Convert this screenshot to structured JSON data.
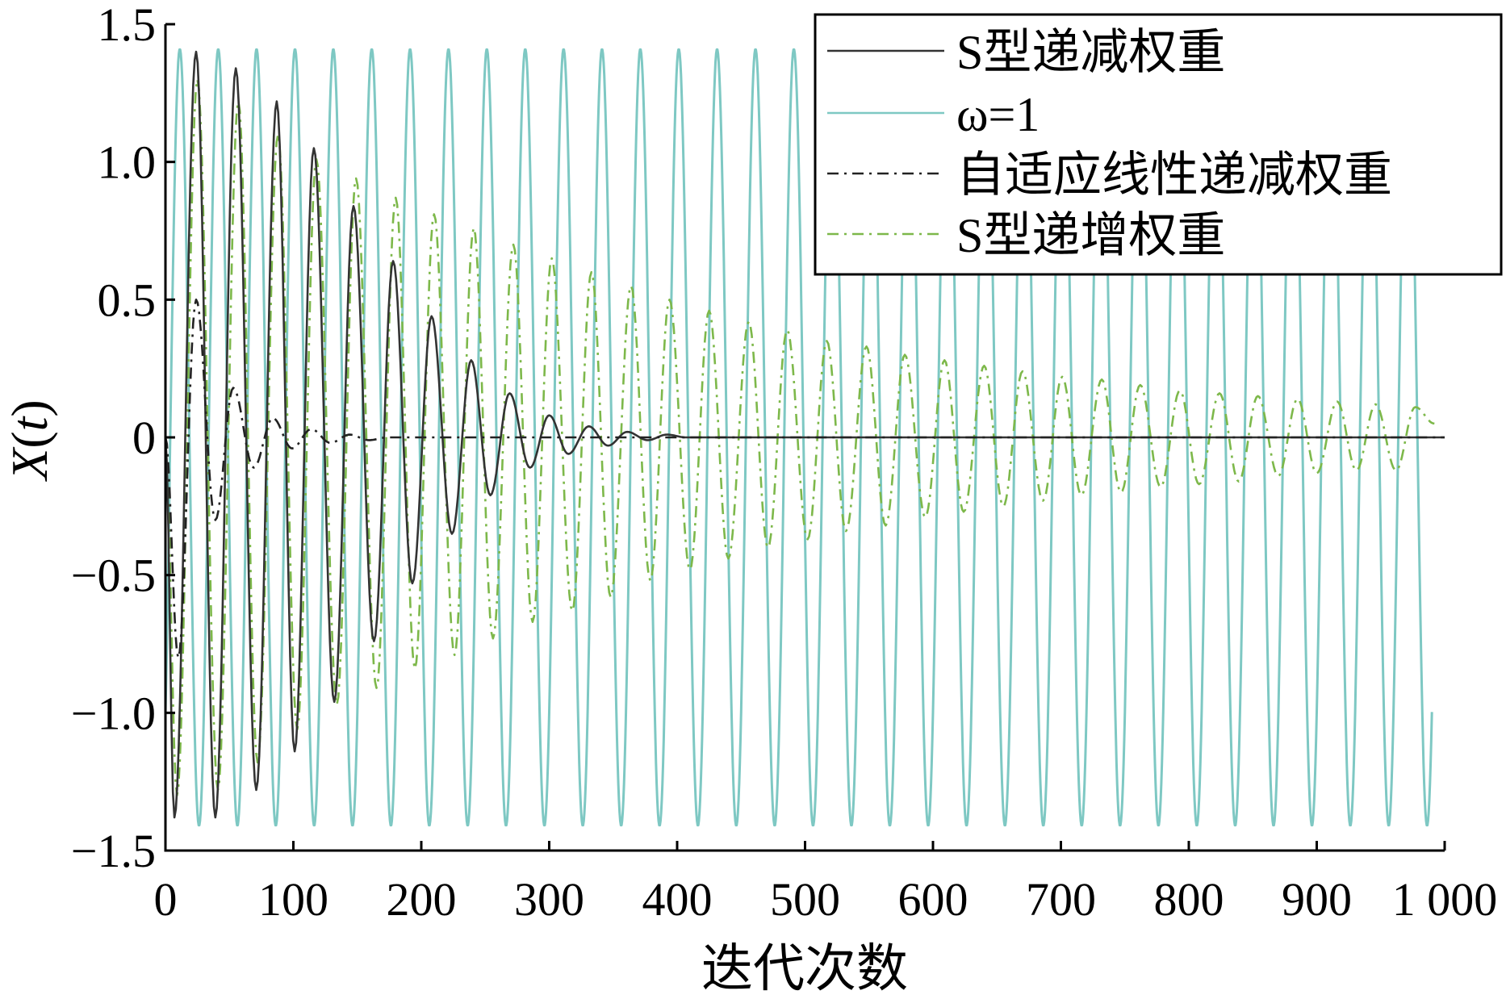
{
  "chart_data": {
    "type": "line",
    "xlabel": "迭代次数",
    "ylabel": "X(t)",
    "xlim": [
      0,
      1000
    ],
    "ylim": [
      -1.5,
      1.5
    ],
    "grid": false,
    "legend_position": "top-right",
    "x_ticks": [
      {
        "value": 0,
        "label": "0"
      },
      {
        "value": 100,
        "label": "100"
      },
      {
        "value": 200,
        "label": "200"
      },
      {
        "value": 300,
        "label": "300"
      },
      {
        "value": 400,
        "label": "400"
      },
      {
        "value": 500,
        "label": "500"
      },
      {
        "value": 600,
        "label": "600"
      },
      {
        "value": 700,
        "label": "700"
      },
      {
        "value": 800,
        "label": "800"
      },
      {
        "value": 900,
        "label": "900"
      },
      {
        "value": 1000,
        "label": "1 000"
      }
    ],
    "y_ticks": [
      {
        "value": 1.5,
        "label": "1.5"
      },
      {
        "value": 1.0,
        "label": "1.0"
      },
      {
        "value": 0.5,
        "label": "0.5"
      },
      {
        "value": 0,
        "label": "0"
      },
      {
        "value": -0.5,
        "label": "−0.5"
      },
      {
        "value": -1.0,
        "label": "−1.0"
      },
      {
        "value": -1.5,
        "label": "−1.5"
      }
    ],
    "series": [
      {
        "name": "S型递减权重",
        "color": "#333333",
        "style": "solid",
        "x": [
          0,
          7,
          24,
          39,
          55,
          71,
          87,
          101,
          116,
          132,
          147,
          163,
          178,
          193,
          208,
          224,
          239,
          254,
          269,
          285,
          300,
          315,
          331,
          346,
          361,
          377,
          392,
          407,
          420,
          1000
        ],
        "y": [
          0.0,
          -1.38,
          1.4,
          -1.38,
          1.34,
          -1.28,
          1.22,
          -1.14,
          1.05,
          -0.96,
          0.84,
          -0.74,
          0.64,
          -0.53,
          0.44,
          -0.35,
          0.28,
          -0.21,
          0.16,
          -0.11,
          0.08,
          -0.06,
          0.04,
          -0.03,
          0.02,
          -0.01,
          0.01,
          0.0,
          0.0,
          0.0
        ]
      },
      {
        "name": "ω=1",
        "color": "#7ec8c3",
        "style": "solid",
        "wave": {
          "amplitude": 1.41,
          "period": 30,
          "phase_degrees": -45,
          "x_end": 990
        }
      },
      {
        "name": "自适应线性递减权重",
        "color": "#222222",
        "style": "dash-dot",
        "x": [
          0,
          10,
          24,
          39,
          53,
          69,
          84,
          99,
          114,
          129,
          144,
          159,
          174,
          190,
          210,
          1000
        ],
        "y": [
          0.0,
          -0.8,
          0.5,
          -0.3,
          0.18,
          -0.11,
          0.07,
          -0.04,
          0.03,
          -0.02,
          0.01,
          -0.01,
          0.0,
          0.0,
          0.0,
          0.0
        ]
      },
      {
        "name": "S型递增权重",
        "color": "#7db84a",
        "style": "dash-dot",
        "x": [
          0,
          9,
          25,
          41,
          57,
          72,
          88,
          103,
          118,
          134,
          149,
          165,
          180,
          195,
          210,
          226,
          241,
          256,
          272,
          287,
          302,
          318,
          333,
          348,
          364,
          379,
          394,
          410,
          425,
          440,
          456,
          471,
          486,
          502,
          517,
          532,
          548,
          563,
          578,
          594,
          609,
          624,
          640,
          655,
          670,
          686,
          701,
          716,
          732,
          747,
          762,
          778,
          793,
          808,
          824,
          839,
          854,
          870,
          885,
          900,
          916,
          931,
          946,
          962,
          977,
          992
        ],
        "y": [
          0.0,
          -1.3,
          1.3,
          -1.28,
          1.22,
          -1.18,
          1.1,
          -1.06,
          1.01,
          -0.97,
          0.94,
          -0.91,
          0.87,
          -0.84,
          0.81,
          -0.79,
          0.76,
          -0.73,
          0.7,
          -0.67,
          0.65,
          -0.63,
          0.6,
          -0.58,
          0.55,
          -0.52,
          0.5,
          -0.48,
          0.46,
          -0.44,
          0.42,
          -0.4,
          0.39,
          -0.37,
          0.35,
          -0.34,
          0.33,
          -0.32,
          0.3,
          -0.29,
          0.28,
          -0.27,
          0.26,
          -0.25,
          0.24,
          -0.23,
          0.22,
          -0.21,
          0.21,
          -0.2,
          0.19,
          -0.18,
          0.17,
          -0.17,
          0.16,
          -0.16,
          0.15,
          -0.14,
          0.14,
          -0.13,
          0.13,
          -0.12,
          0.12,
          -0.12,
          0.11,
          0.05
        ]
      }
    ]
  }
}
